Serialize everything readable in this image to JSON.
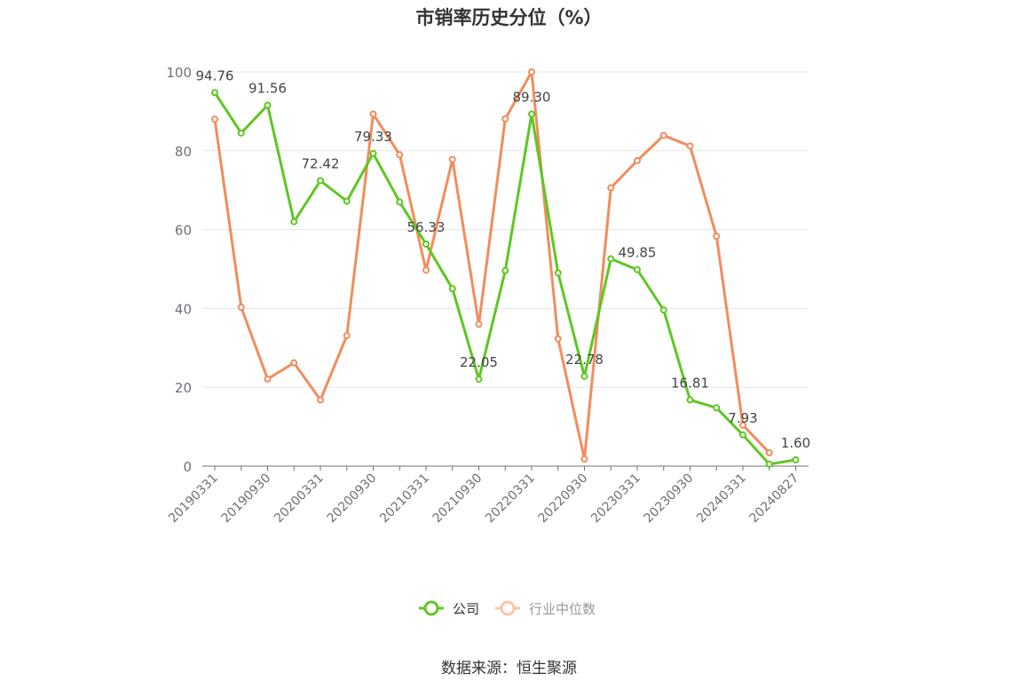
{
  "chart_data": {
    "type": "line",
    "title": "市销率历史分位（%）",
    "x": [
      "20190331",
      "20190630",
      "20190930",
      "20191231",
      "20200331",
      "20200630",
      "20200930",
      "20201231",
      "20210331",
      "20210630",
      "20210930",
      "20211231",
      "20220331",
      "20220630",
      "20220930",
      "20221231",
      "20230331",
      "20230630",
      "20230930",
      "20231231",
      "20240331",
      "20240630",
      "20240827"
    ],
    "x_tick_labels": [
      "20190331",
      "20190930",
      "20200331",
      "20200930",
      "20210331",
      "20210930",
      "20220331",
      "20220930",
      "20230331",
      "20230930",
      "20240331",
      "20240827"
    ],
    "y_ticks": [
      0,
      20,
      40,
      60,
      80,
      100
    ],
    "ylim": [
      0,
      100
    ],
    "grid": true,
    "legend_position": "bottom",
    "series": [
      {
        "name": "公司",
        "color": "#5ec722",
        "values": [
          94.76,
          84.5,
          91.56,
          62.0,
          72.42,
          67.2,
          79.33,
          67.0,
          56.33,
          45.0,
          22.05,
          49.6,
          89.3,
          49.0,
          22.78,
          52.6,
          49.85,
          39.6,
          16.81,
          14.8,
          7.93,
          0.5,
          1.6
        ],
        "labels": {
          "0": "94.76",
          "2": "91.56",
          "4": "72.42",
          "6": "79.33",
          "8": "56.33",
          "10": "22.05",
          "12": "89.30",
          "14": "22.78",
          "16": "49.85",
          "18": "16.81",
          "20": "7.93",
          "22": "1.60"
        }
      },
      {
        "name": "行业中位数",
        "color": "#f28c5c",
        "values": [
          88.0,
          40.3,
          22.1,
          26.2,
          16.8,
          33.1,
          89.3,
          79.0,
          49.7,
          77.8,
          36.0,
          88.1,
          100.0,
          32.3,
          1.8,
          70.6,
          77.5,
          83.9,
          81.2,
          58.3,
          10.4,
          3.4,
          null
        ]
      }
    ]
  },
  "legend": {
    "items": [
      {
        "label": "公司",
        "color": "#5ec722"
      },
      {
        "label": "行业中位数",
        "color": "#f9c4ab"
      }
    ]
  },
  "footer": {
    "source": "数据来源：恒生聚源"
  }
}
